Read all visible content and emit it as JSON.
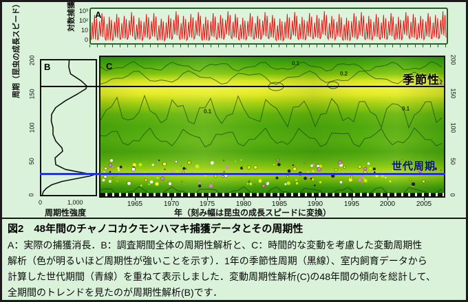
{
  "figure": {
    "panel_a": {
      "label": "A",
      "y_axis_label": "対数捕獲数",
      "y_ticks": [
        "10³",
        "10²",
        "10",
        "0"
      ]
    },
    "panel_b": {
      "label": "B",
      "y_axis_label": "周期（昆虫の成長スピード）",
      "y_ticks": [
        "200",
        "150",
        "100",
        "50",
        "0"
      ],
      "x_ticks": [
        "0",
        "1,000"
      ],
      "x_axis_label": "周期性強度"
    },
    "panel_c": {
      "label": "C",
      "x_axis_label": "年（刻み幅は昆虫の成長スピードに変換）",
      "y_ticks_right": [
        "200",
        "150",
        "100",
        "50",
        "0"
      ],
      "annotation_seasonality": "季節性",
      "annotation_generation": "世代周期"
    }
  },
  "caption": {
    "title": "図2　48年間のチャノコカクモンハマキ捕獲データとその周期性",
    "lines": [
      "A：実際の捕獲消長．B：調査期間全体の周期性解析と、C：時間的な変動を考慮した変動周期性",
      "解析（色が明るいほど周期性が強いことを示す）．1年の季節性周期（黒線）、室内飼育データから",
      "計算した世代期間（青線）を重ねて表示しました．変動周期性解析(C)の48年間の傾向を総計して、",
      "全期間のトレンドを見たのが周期性解析(B)です．"
    ]
  },
  "colors": {
    "background": "#d9f2d9",
    "frame": "#1b1b1b",
    "series_a": "#e81010",
    "seasonality_line": "#000000",
    "generation_line": "#2233dd",
    "generation_text": "#001080",
    "heatmap_bright": "#eef23c",
    "heatmap_base": "#4fa90e",
    "contour": "#1c4a08"
  },
  "chart_data": [
    {
      "id": "A",
      "type": "line",
      "title": "実際の捕獲消長（対数捕獲数）",
      "x_range": [
        1961,
        2008
      ],
      "y_ticks": [
        "0",
        "10",
        "10²",
        "10³"
      ],
      "y_max_log": 3.4,
      "yearly_peaks": [
        2.9,
        3.1,
        2.7,
        3.0,
        2.8,
        3.2,
        2.6,
        3.0,
        3.1,
        2.5,
        2.9,
        3.3,
        2.8,
        3.0,
        3.2,
        2.7,
        3.1,
        2.9,
        3.3,
        3.0,
        2.6,
        3.1,
        2.8,
        3.2,
        2.9,
        2.5,
        3.0,
        3.2,
        2.7,
        3.1,
        2.9,
        3.3,
        2.8,
        3.0,
        2.6,
        3.1,
        3.2,
        2.8,
        3.0,
        2.9,
        3.1,
        2.7,
        3.2,
        3.0,
        2.8,
        3.1,
        2.9,
        3.3
      ],
      "yearly_troughs": [
        0.3,
        0.6,
        0.2,
        0.5,
        0.4,
        0.7,
        0.3,
        0.5,
        0.6,
        0.2,
        0.4,
        0.8,
        0.3,
        0.5,
        0.7,
        0.2,
        0.6,
        0.4,
        0.8,
        0.5,
        0.3,
        0.6,
        0.4,
        0.7,
        0.5,
        0.2,
        0.4,
        0.7,
        0.3,
        0.6,
        0.5,
        0.8,
        0.4,
        0.6,
        0.2,
        0.5,
        0.7,
        0.3,
        0.6,
        0.4,
        0.7,
        0.3,
        0.8,
        0.5,
        0.4,
        0.6,
        0.5,
        0.8
      ]
    },
    {
      "id": "B",
      "type": "line",
      "title": "調査期間全体の周期性解析",
      "xlabel": "周期性強度",
      "x_ticks": [
        0,
        1000
      ],
      "ylim": [
        0,
        200
      ],
      "points_period_strength": [
        [
          0,
          30
        ],
        [
          5,
          60
        ],
        [
          10,
          150
        ],
        [
          15,
          300
        ],
        [
          20,
          600
        ],
        [
          25,
          1100
        ],
        [
          28,
          1400
        ],
        [
          30,
          1530
        ],
        [
          33,
          1200
        ],
        [
          38,
          700
        ],
        [
          45,
          420
        ],
        [
          55,
          400
        ],
        [
          65,
          620
        ],
        [
          70,
          600
        ],
        [
          80,
          420
        ],
        [
          90,
          340
        ],
        [
          100,
          340
        ],
        [
          110,
          290
        ],
        [
          120,
          300
        ],
        [
          130,
          420
        ],
        [
          140,
          700
        ],
        [
          150,
          1050
        ],
        [
          158,
          1300
        ],
        [
          162,
          1320
        ],
        [
          170,
          1150
        ],
        [
          180,
          850
        ],
        [
          190,
          800
        ],
        [
          200,
          810
        ]
      ]
    },
    {
      "id": "C",
      "type": "heatmap",
      "title": "変動周期性解析（色が明るいほど周期性が強い）",
      "xlabel": "年（刻み幅は昆虫の成長スピードに変換）",
      "x_range": [
        1960.5,
        2008.5
      ],
      "x_ticks": [
        1965,
        1970,
        1975,
        1980,
        1985,
        1990,
        1995,
        2000,
        2005
      ],
      "ylim": [
        0,
        200
      ],
      "y_ticks": [
        0,
        50,
        100,
        150,
        200
      ],
      "reference_lines": [
        {
          "value": 160,
          "label": "季節性",
          "color": "#000000"
        },
        {
          "value": 30,
          "label": "世代周期",
          "color": "#2233dd"
        }
      ],
      "contour_labels": [
        {
          "t": "0.1",
          "x": 278,
          "y": 12
        },
        {
          "t": "0.2",
          "x": 348,
          "y": 27
        },
        {
          "t": "0.2",
          "x": 486,
          "y": 40
        },
        {
          "t": "0.1",
          "x": 438,
          "y": 78
        },
        {
          "t": "0.1",
          "x": 150,
          "y": 82
        }
      ],
      "contours": [
        {
          "y": 14,
          "amp": 5,
          "cyc": 8
        },
        {
          "y": 30,
          "amp": 7,
          "cyc": 6
        },
        {
          "y": 80,
          "amp": 16,
          "cyc": 11
        },
        {
          "y": 118,
          "amp": 10,
          "cyc": 9
        },
        {
          "y": 196,
          "amp": 5,
          "cyc": 10
        }
      ],
      "speckle_palette": [
        "#f5f03a",
        "#ffffff",
        "#e87ad0",
        "#222222",
        "#c8f000"
      ]
    }
  ]
}
